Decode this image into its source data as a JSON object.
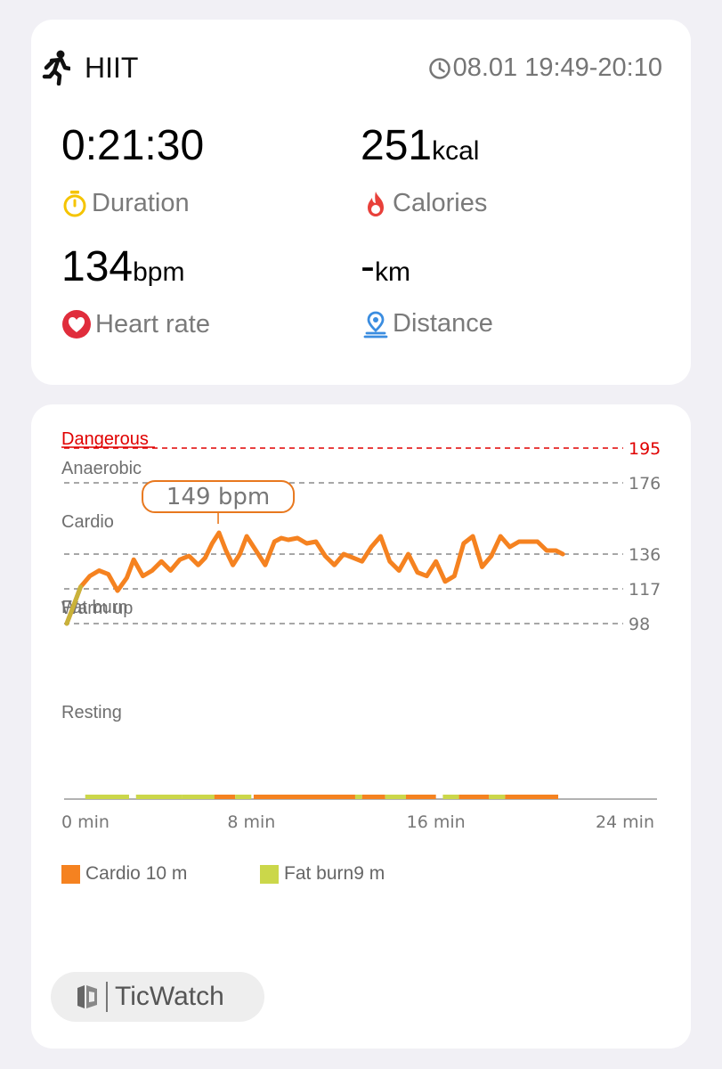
{
  "workout": {
    "activity_icon": "running-person-icon",
    "activity": "HIIT",
    "time_range": "08.01 19:49-20:10"
  },
  "metrics": {
    "duration": {
      "value": "0:21:30",
      "unit": "",
      "label": "Duration",
      "icon": "stopwatch-icon",
      "icon_color": "#f5c400"
    },
    "calories": {
      "value": "251",
      "unit": "kcal",
      "label": "Calories",
      "icon": "flame-icon",
      "icon_color": "#e8403a"
    },
    "heart_rate": {
      "value": "134",
      "unit": "bpm",
      "label": "Heart rate",
      "icon": "heart-icon",
      "icon_color": "#e02d3c"
    },
    "distance": {
      "value": "-",
      "unit": "km",
      "label": "Distance",
      "icon": "location-pin-icon",
      "icon_color": "#3b8de0"
    }
  },
  "chart_data": {
    "type": "line",
    "title": "",
    "xlabel": "",
    "ylabel": "",
    "x_ticks": [
      "0 min",
      "8 min",
      "16 min",
      "24 min"
    ],
    "xlim": [
      0,
      24
    ],
    "zones": [
      {
        "name": "Dangerous",
        "threshold": 195,
        "color": "#e00000"
      },
      {
        "name": "Anaerobic",
        "threshold": 176,
        "color": "#777777"
      },
      {
        "name": "Cardio",
        "threshold": 136,
        "color": "#777777"
      },
      {
        "name": "Fat burn",
        "threshold": 117,
        "color": "#777777"
      },
      {
        "name": "Warm up",
        "threshold": 98,
        "color": "#777777"
      }
    ],
    "resting_label": "Resting",
    "peak_label": "149 bpm",
    "peak": {
      "x": 6.6,
      "y": 149
    },
    "series": [
      {
        "color": "#f58220",
        "x": [
          0,
          0.3,
          0.6,
          1.0,
          1.4,
          1.8,
          2.2,
          2.6,
          2.9,
          3.3,
          3.7,
          4.1,
          4.5,
          4.9,
          5.3,
          5.7,
          6.0,
          6.3,
          6.6,
          6.9,
          7.2,
          7.5,
          7.8,
          8.2,
          8.6,
          9.0,
          9.3,
          9.6,
          10.0,
          10.4,
          10.8,
          11.2,
          11.6,
          12.0,
          12.4,
          12.8,
          13.2,
          13.6,
          14.0,
          14.4,
          14.8,
          15.2,
          15.6,
          16.0,
          16.4,
          16.8,
          17.2,
          17.6,
          18.0,
          18.4,
          18.8,
          19.2,
          19.6,
          20.0,
          20.4,
          20.8,
          21.2,
          21.5
        ],
        "y": [
          98,
          108,
          118,
          124,
          127,
          125,
          116,
          123,
          133,
          124,
          127,
          132,
          127,
          133,
          135,
          130,
          134,
          142,
          148,
          138,
          130,
          136,
          146,
          138,
          130,
          143,
          145,
          144,
          145,
          142,
          143,
          135,
          130,
          136,
          134,
          132,
          140,
          146,
          132,
          127,
          136,
          126,
          124,
          132,
          121,
          124,
          142,
          146,
          129,
          135,
          146,
          140,
          143,
          143,
          143,
          138,
          138,
          136
        ]
      }
    ],
    "zone_bar": {
      "segments": [
        {
          "zone": "Fat burn",
          "start": 0.8,
          "end": 2.7
        },
        {
          "zone": "Fat burn",
          "start": 3.0,
          "end": 5.0
        },
        {
          "zone": "Fat burn",
          "start": 5.0,
          "end": 6.5
        },
        {
          "zone": "Cardio",
          "start": 6.4,
          "end": 7.3
        },
        {
          "zone": "Fat burn",
          "start": 7.3,
          "end": 8.0
        },
        {
          "zone": "Cardio",
          "start": 8.1,
          "end": 12.5
        },
        {
          "zone": "Fat burn",
          "start": 12.5,
          "end": 12.8
        },
        {
          "zone": "Cardio",
          "start": 12.8,
          "end": 13.8
        },
        {
          "zone": "Fat burn",
          "start": 13.8,
          "end": 14.7
        },
        {
          "zone": "Cardio",
          "start": 14.7,
          "end": 16.0
        },
        {
          "zone": "Fat burn",
          "start": 16.3,
          "end": 17.0
        },
        {
          "zone": "Cardio",
          "start": 17.0,
          "end": 18.3
        },
        {
          "zone": "Fat burn",
          "start": 18.3,
          "end": 19.0
        },
        {
          "zone": "Cardio",
          "start": 19.0,
          "end": 21.3
        }
      ]
    },
    "legend": [
      {
        "label": "Cardio 10 m",
        "color": "#f58220"
      },
      {
        "label": "Fat burn9 m",
        "color": "#cbd74a"
      }
    ]
  },
  "brand": {
    "name": "TicWatch",
    "icon": "ticwatch-logo-icon"
  }
}
